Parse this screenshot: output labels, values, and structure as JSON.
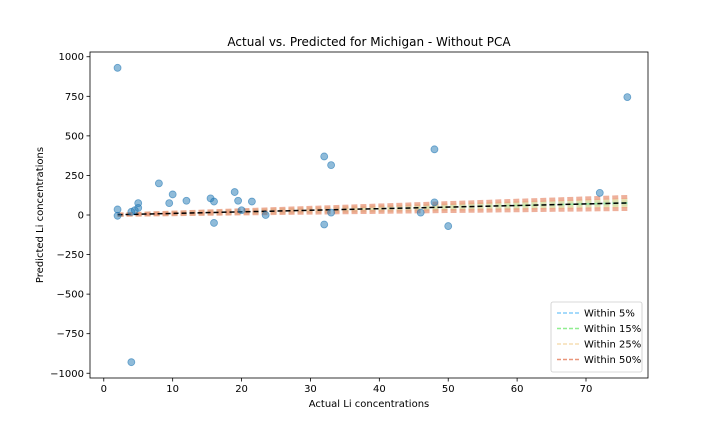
{
  "chart_data": {
    "type": "scatter",
    "title": "Actual vs. Predicted for Michigan - Without PCA",
    "xlabel": "Actual Li concentrations",
    "ylabel": "Predicted Li concentrations",
    "xlim": [
      -2,
      79
    ],
    "ylim": [
      -1030,
      1030
    ],
    "x_ticks": [
      0,
      10,
      20,
      30,
      40,
      50,
      60,
      70
    ],
    "y_ticks": [
      -1000,
      -750,
      -500,
      -250,
      0,
      250,
      500,
      750,
      1000
    ],
    "grid": false,
    "legend_position": "lower-right",
    "points": {
      "color": "#1f77b4",
      "x": [
        2,
        2,
        2,
        4,
        4,
        4.5,
        5,
        5,
        8,
        9.5,
        10,
        12,
        15.5,
        16,
        16,
        19,
        19.5,
        20,
        21.5,
        23.5,
        32,
        32,
        33,
        33,
        46,
        48,
        48,
        50,
        72,
        76
      ],
      "y": [
        930,
        35,
        -5,
        20,
        -930,
        30,
        45,
        75,
        200,
        75,
        130,
        90,
        105,
        85,
        -50,
        145,
        90,
        30,
        85,
        0,
        370,
        -60,
        315,
        15,
        15,
        415,
        80,
        -70,
        140,
        745
      ]
    },
    "bands": [
      {
        "name": "Within 5%",
        "color": "#87cefa",
        "ratio": 0.05
      },
      {
        "name": "Within 15%",
        "color": "#90ee90",
        "ratio": 0.15
      },
      {
        "name": "Within 25%",
        "color": "#f5deb3",
        "ratio": 0.25
      },
      {
        "name": "Within 50%",
        "color": "#e9967a",
        "ratio": 0.5
      }
    ],
    "perfect_line": {
      "x": [
        2,
        76
      ],
      "color": "#000000"
    }
  }
}
